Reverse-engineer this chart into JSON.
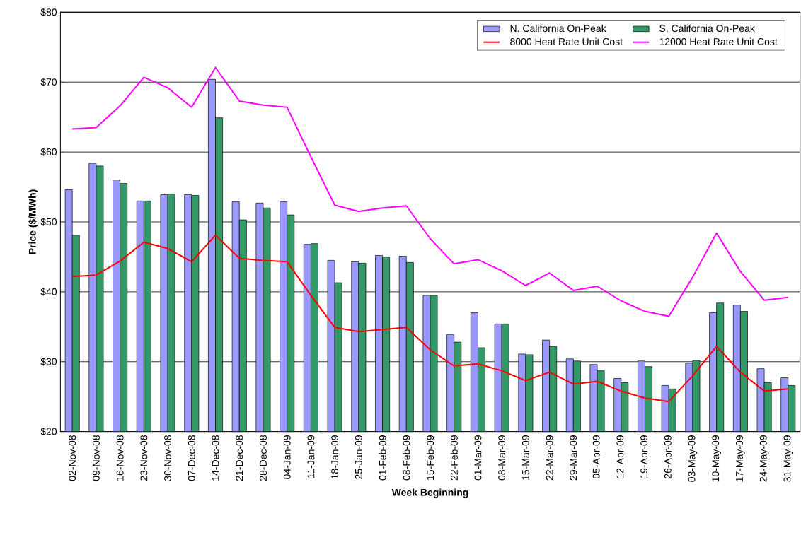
{
  "chart_data": {
    "type": "bar",
    "xlabel": "Week Beginning",
    "ylabel": "Price ($/MWh)",
    "categories": [
      "02-Nov-08",
      "09-Nov-08",
      "16-Nov-08",
      "23-Nov-08",
      "30-Nov-08",
      "07-Dec-08",
      "14-Dec-08",
      "21-Dec-08",
      "28-Dec-08",
      "04-Jan-09",
      "11-Jan-09",
      "18-Jan-09",
      "25-Jan-09",
      "01-Feb-09",
      "08-Feb-09",
      "15-Feb-09",
      "22-Feb-09",
      "01-Mar-09",
      "08-Mar-09",
      "15-Mar-09",
      "22-Mar-09",
      "29-Mar-09",
      "05-Apr-09",
      "12-Apr-09",
      "19-Apr-09",
      "26-Apr-09",
      "03-May-09",
      "10-May-09",
      "17-May-09",
      "24-May-09",
      "31-May-09"
    ],
    "series": [
      {
        "name": "N. California On-Peak",
        "color": "#9999ff",
        "values": [
          54.6,
          58.4,
          56.0,
          53.0,
          53.9,
          53.9,
          70.4,
          52.9,
          52.7,
          52.9,
          46.8,
          44.5,
          44.3,
          45.2,
          45.1,
          39.5,
          33.9,
          37.0,
          35.4,
          31.1,
          33.1,
          30.4,
          29.6,
          27.6,
          30.1,
          26.6,
          29.8,
          37.0,
          38.1,
          29.0,
          27.7
        ]
      },
      {
        "name": "S. California On-Peak",
        "color": "#339966",
        "values": [
          48.1,
          58.0,
          55.5,
          53.0,
          54.0,
          53.8,
          64.9,
          50.3,
          52.0,
          51.0,
          46.9,
          41.3,
          44.1,
          45.0,
          44.2,
          39.5,
          32.8,
          32.0,
          35.4,
          31.0,
          32.2,
          30.1,
          28.7,
          27.0,
          29.3,
          26.1,
          30.2,
          38.4,
          37.2,
          27.0,
          26.6
        ]
      },
      {
        "name": "8000 Heat Rate Unit Cost",
        "type": "line",
        "color": "#ff0000",
        "values": [
          42.2,
          42.4,
          44.4,
          47.1,
          46.2,
          44.3,
          48.1,
          44.8,
          44.5,
          44.3,
          39.5,
          34.9,
          34.3,
          34.6,
          34.9,
          31.7,
          29.4,
          29.7,
          28.7,
          27.3,
          28.5,
          26.8,
          27.2,
          25.8,
          24.8,
          24.3,
          28.0,
          32.2,
          28.5,
          25.8,
          26.1
        ]
      },
      {
        "name": "12000 Heat Rate Unit Cost",
        "type": "line",
        "color": "#ff00ff",
        "values": [
          63.3,
          63.5,
          66.6,
          70.7,
          69.2,
          66.4,
          72.1,
          67.3,
          66.7,
          66.4,
          59.3,
          52.4,
          51.5,
          52.0,
          52.3,
          47.6,
          44.0,
          44.6,
          43.0,
          40.9,
          42.7,
          40.2,
          40.8,
          38.7,
          37.2,
          36.5,
          42.1,
          48.4,
          42.9,
          38.8,
          39.2
        ]
      }
    ],
    "ylim": [
      20,
      80
    ],
    "yticks": [
      {
        "value": 20,
        "label": "$20"
      },
      {
        "value": 30,
        "label": "$30"
      },
      {
        "value": 40,
        "label": "$40"
      },
      {
        "value": 50,
        "label": "$50"
      },
      {
        "value": 60,
        "label": "$60"
      },
      {
        "value": 70,
        "label": "$70"
      },
      {
        "value": 80,
        "label": "$80"
      }
    ],
    "grid": "y",
    "legend": "top right",
    "marker": "none"
  }
}
